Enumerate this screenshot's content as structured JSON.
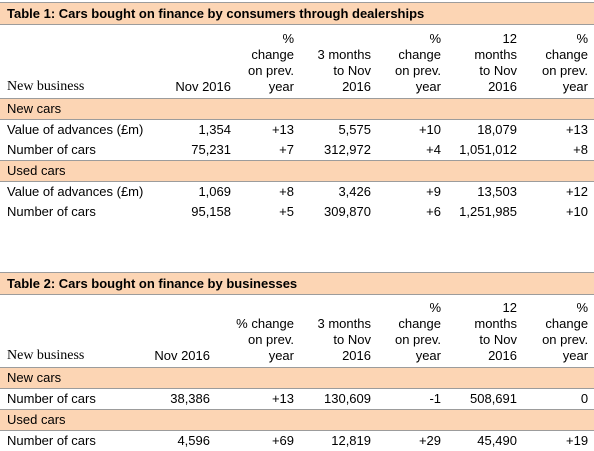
{
  "table1": {
    "title": "Table 1: Cars bought on finance by consumers through dealerships",
    "headers": {
      "label": "New business",
      "month": "Nov  2016",
      "pct1": [
        "%",
        "change",
        "on prev.",
        "year"
      ],
      "three_months": [
        "3 months",
        "to Nov",
        "2016"
      ],
      "pct2": [
        "%",
        "change",
        "on prev.",
        "year"
      ],
      "twelve_months": [
        "12",
        "months",
        "to Nov",
        "2016"
      ],
      "pct3": [
        "%",
        "change",
        "on prev.",
        "year"
      ]
    },
    "sections": [
      {
        "name": "New cars",
        "rows": [
          {
            "label": "Value of advances (£m)",
            "values": [
              "1,354",
              "+13",
              "5,575",
              "+10",
              "18,079",
              "+13"
            ]
          },
          {
            "label": "Number of cars",
            "values": [
              "75,231",
              "+7",
              "312,972",
              "+4",
              "1,051,012",
              "+8"
            ]
          }
        ]
      },
      {
        "name": "Used cars",
        "rows": [
          {
            "label": "Value of advances (£m)",
            "values": [
              "1,069",
              "+8",
              "3,426",
              "+9",
              "13,503",
              "+12"
            ]
          },
          {
            "label": "Number of cars",
            "values": [
              "95,158",
              "+5",
              "309,870",
              "+6",
              "1,251,985",
              "+10"
            ]
          }
        ]
      }
    ]
  },
  "table2": {
    "title": "Table 2: Cars bought on finance by businesses",
    "headers": {
      "label": "New business",
      "month": "Nov 2016",
      "pct1": [
        "% change",
        "on prev.",
        "year"
      ],
      "three_months": [
        "3 months",
        "to Nov",
        "2016"
      ],
      "pct2": [
        "%",
        "change",
        "on prev.",
        "year"
      ],
      "twelve_months": [
        "12",
        "months",
        "to Nov",
        "2016"
      ],
      "pct3": [
        "%",
        "change",
        "on prev.",
        "year"
      ]
    },
    "sections": [
      {
        "name": "New cars",
        "rows": [
          {
            "label": "Number of cars",
            "values": [
              "38,386",
              "+13",
              "130,609",
              "-1",
              "508,691",
              "0"
            ]
          }
        ]
      },
      {
        "name": "Used cars",
        "rows": [
          {
            "label": "Number of cars",
            "values": [
              "4,596",
              "+69",
              "12,819",
              "+29",
              "45,490",
              "+19"
            ]
          }
        ]
      }
    ]
  }
}
